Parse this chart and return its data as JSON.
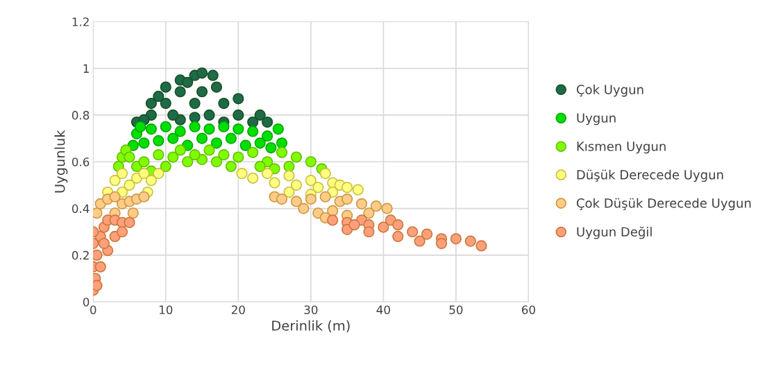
{
  "chart_data": {
    "type": "scatter",
    "xlabel": "Derinlik (m)",
    "ylabel": "Uygunluk",
    "xlim": [
      0,
      60
    ],
    "xticks": [
      0,
      10,
      20,
      30,
      40,
      50,
      60
    ],
    "ylim": [
      0,
      1.2
    ],
    "yticks": [
      0,
      0.2,
      0.4,
      0.6,
      0.8,
      1,
      1.2
    ],
    "grid": true,
    "legend": "right",
    "marker": "circle",
    "series": [
      {
        "name": "Çok Uygun",
        "color": "#1e6b48",
        "x": [
          6,
          8,
          10,
          12,
          14,
          15,
          16.5,
          20,
          23,
          8,
          10,
          12,
          14,
          16,
          18,
          20,
          12,
          18,
          22,
          7,
          9,
          13,
          15,
          17,
          11,
          14,
          24
        ],
        "values": [
          0.77,
          0.85,
          0.92,
          0.95,
          0.97,
          0.98,
          0.97,
          0.87,
          0.8,
          0.8,
          0.85,
          0.9,
          0.85,
          0.8,
          0.85,
          0.8,
          0.78,
          0.77,
          0.77,
          0.78,
          0.88,
          0.94,
          0.9,
          0.92,
          0.8,
          0.79,
          0.77
        ]
      },
      {
        "name": "Uygun",
        "color": "#00e000",
        "x": [
          5.5,
          6,
          6.5,
          8,
          10,
          12,
          14,
          16,
          18,
          20,
          22,
          24,
          25.5,
          26,
          7,
          9,
          11,
          13,
          15,
          17,
          19,
          21,
          23,
          24.5
        ],
        "values": [
          0.67,
          0.72,
          0.75,
          0.74,
          0.75,
          0.73,
          0.75,
          0.74,
          0.75,
          0.74,
          0.73,
          0.71,
          0.74,
          0.68,
          0.68,
          0.69,
          0.7,
          0.67,
          0.7,
          0.68,
          0.7,
          0.67,
          0.68,
          0.66
        ]
      },
      {
        "name": "Kısmen Uygun",
        "color": "#7fff00",
        "x": [
          3.5,
          4,
          4.5,
          8,
          10,
          13,
          15,
          17,
          19,
          5,
          6,
          7,
          9,
          11,
          12,
          14,
          16,
          18,
          20,
          22,
          24,
          26,
          27,
          28,
          30,
          31.5,
          25,
          23
        ],
        "values": [
          0.58,
          0.62,
          0.65,
          0.56,
          0.58,
          0.6,
          0.61,
          0.6,
          0.58,
          0.62,
          0.58,
          0.6,
          0.63,
          0.62,
          0.65,
          0.63,
          0.65,
          0.63,
          0.62,
          0.64,
          0.6,
          0.64,
          0.58,
          0.62,
          0.6,
          0.57,
          0.57,
          0.58
        ]
      },
      {
        "name": "Düşük Derecede Uygun",
        "color": "#ffff80",
        "x": [
          2,
          3,
          4,
          5,
          6,
          7,
          8,
          9,
          7.5,
          4,
          20.5,
          22,
          24,
          25,
          27,
          28,
          30,
          31,
          32,
          33,
          34,
          35,
          36.5,
          27,
          30,
          33
        ],
        "values": [
          0.47,
          0.52,
          0.55,
          0.5,
          0.53,
          0.55,
          0.52,
          0.55,
          0.47,
          0.47,
          0.55,
          0.53,
          0.55,
          0.51,
          0.54,
          0.5,
          0.52,
          0.49,
          0.55,
          0.51,
          0.5,
          0.49,
          0.48,
          0.47,
          0.46,
          0.47
        ]
      },
      {
        "name": "Çok Düşük Derecede Uygun",
        "color": "#ffcc88",
        "x": [
          0.5,
          1,
          2,
          3,
          4,
          5,
          6,
          7,
          5.5,
          3,
          25,
          26,
          28,
          30,
          32,
          34,
          35,
          37,
          39,
          40.5,
          29,
          31,
          33,
          35,
          38,
          32
        ],
        "values": [
          0.38,
          0.42,
          0.44,
          0.45,
          0.42,
          0.43,
          0.44,
          0.45,
          0.38,
          0.38,
          0.45,
          0.44,
          0.43,
          0.44,
          0.45,
          0.43,
          0.44,
          0.42,
          0.41,
          0.4,
          0.4,
          0.38,
          0.39,
          0.37,
          0.38,
          0.36
        ]
      },
      {
        "name": "Uygun Değil",
        "color": "#ffa07a",
        "x": [
          0,
          0.3,
          0,
          0.5,
          0,
          1,
          0,
          1.5,
          2,
          3,
          4,
          5,
          3,
          2,
          1,
          1.5,
          4,
          0.5,
          33,
          35,
          37,
          38,
          40,
          41,
          42,
          44,
          45,
          46,
          48,
          48,
          50,
          52,
          53.5,
          35,
          38,
          42,
          36
        ],
        "values": [
          0.05,
          0.1,
          0.15,
          0.2,
          0.25,
          0.28,
          0.3,
          0.32,
          0.35,
          0.35,
          0.34,
          0.34,
          0.28,
          0.22,
          0.15,
          0.25,
          0.3,
          0.07,
          0.35,
          0.34,
          0.35,
          0.33,
          0.32,
          0.35,
          0.33,
          0.3,
          0.26,
          0.29,
          0.27,
          0.25,
          0.27,
          0.26,
          0.24,
          0.31,
          0.3,
          0.28,
          0.33
        ]
      }
    ]
  }
}
